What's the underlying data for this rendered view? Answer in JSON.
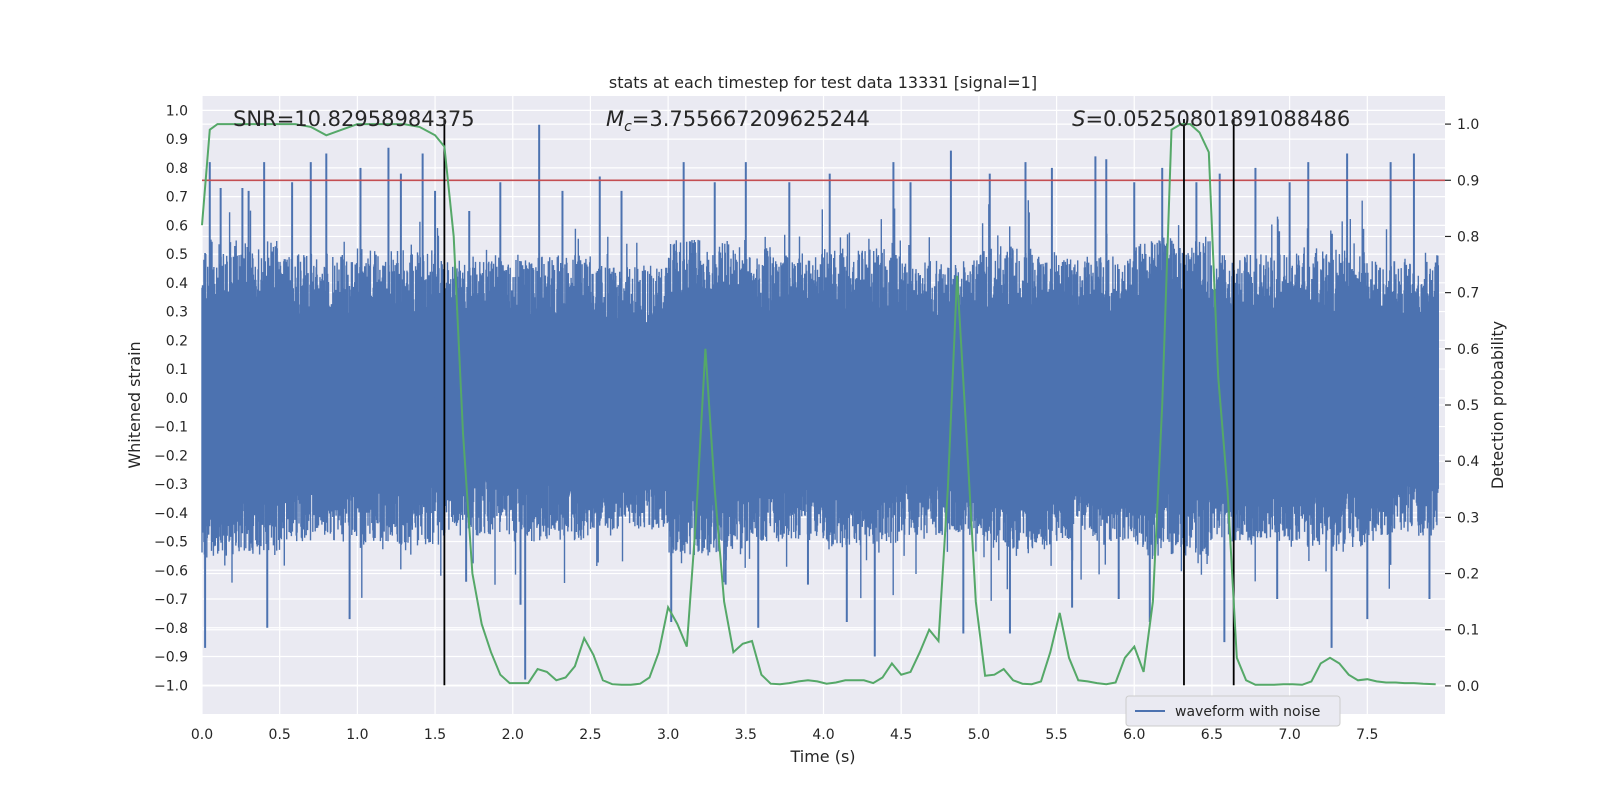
{
  "chart_data": {
    "type": "line",
    "title": "stats at each timestep for test data 13331 [signal=1]",
    "xlabel": "Time (s)",
    "ylabel": "Whitened strain",
    "ylabel_right": "Detection probability",
    "xlim": [
      0.0,
      8.0
    ],
    "ylim": [
      -1.1,
      1.05
    ],
    "ylim_right": [
      -0.05,
      1.05
    ],
    "x_ticks": [
      0.0,
      0.5,
      1.0,
      1.5,
      2.0,
      2.5,
      3.0,
      3.5,
      4.0,
      4.5,
      5.0,
      5.5,
      6.0,
      6.5,
      7.0,
      7.5
    ],
    "x_tick_labels": [
      "0.0",
      "0.5",
      "1.0",
      "1.5",
      "2.0",
      "2.5",
      "3.0",
      "3.5",
      "4.0",
      "4.5",
      "5.0",
      "5.5",
      "6.0",
      "6.5",
      "7.0",
      "7.5"
    ],
    "y_ticks": [
      1.0,
      0.9,
      0.8,
      0.7,
      0.6,
      0.5,
      0.4,
      0.3,
      0.2,
      0.1,
      0.0,
      -0.1,
      -0.2,
      -0.3,
      -0.4,
      -0.5,
      -0.6,
      -0.7,
      -0.8,
      -0.9,
      -1.0
    ],
    "y_tick_labels": [
      "1.0",
      "0.9",
      "0.8",
      "0.7",
      "0.6",
      "0.5",
      "0.4",
      "0.3",
      "0.2",
      "0.1",
      "0.0",
      "-0.1",
      "-0.2",
      "-0.3",
      "-0.4",
      "-0.5",
      "-0.6",
      "-0.7",
      "-0.8",
      "-0.9",
      "-1.0"
    ],
    "y_right_ticks": [
      1.0,
      0.9,
      0.8,
      0.7,
      0.6,
      0.5,
      0.4,
      0.3,
      0.2,
      0.1,
      0.0
    ],
    "y_right_tick_labels": [
      "1.0",
      "0.9",
      "0.8",
      "0.7",
      "0.6",
      "0.5",
      "0.4",
      "0.3",
      "0.2",
      "0.1",
      "0.0"
    ],
    "grid": true,
    "legend_position": "bottom-right",
    "annotations": [
      {
        "text": "SNR=10.82958984375",
        "x": 0.2,
        "y": 0.97
      },
      {
        "text_italic": "M",
        "text_sub": "c",
        "text_rest": "=3.755667209625244",
        "x": 2.6,
        "y": 0.97
      },
      {
        "text_italic": "S",
        "text_rest": "=0.05250801891088486",
        "x": 5.6,
        "y": 0.97
      }
    ],
    "threshold_line": {
      "y_right": 0.9,
      "color": "#c44e52"
    },
    "event_lines": [
      1.56,
      6.32,
      6.64
    ],
    "waveform": {
      "name": "waveform with noise",
      "color": "#4c72b0",
      "envelope_high": [
        0.55,
        0.5,
        0.52,
        0.48,
        0.5,
        0.46,
        0.55,
        0.5,
        0.52,
        0.48,
        0.53,
        0.5,
        0.55,
        0.5,
        0.52,
        0.48
      ],
      "spikes": [
        {
          "x": 0.02,
          "y": -0.87
        },
        {
          "x": 0.05,
          "y": 0.82
        },
        {
          "x": 0.12,
          "y": 0.73
        },
        {
          "x": 0.26,
          "y": 0.73
        },
        {
          "x": 0.3,
          "y": 0.72
        },
        {
          "x": 0.4,
          "y": 0.82
        },
        {
          "x": 0.42,
          "y": -0.8
        },
        {
          "x": 0.58,
          "y": 0.75
        },
        {
          "x": 0.7,
          "y": 0.82
        },
        {
          "x": 0.8,
          "y": 0.85
        },
        {
          "x": 0.95,
          "y": -0.77
        },
        {
          "x": 1.02,
          "y": 0.8
        },
        {
          "x": 1.2,
          "y": 0.87
        },
        {
          "x": 1.28,
          "y": 0.78
        },
        {
          "x": 1.42,
          "y": 0.85
        },
        {
          "x": 1.5,
          "y": 0.72
        },
        {
          "x": 1.7,
          "y": -0.64
        },
        {
          "x": 1.72,
          "y": 0.65
        },
        {
          "x": 1.92,
          "y": 0.75
        },
        {
          "x": 2.05,
          "y": -0.72
        },
        {
          "x": 2.08,
          "y": -0.98
        },
        {
          "x": 2.17,
          "y": 0.95
        },
        {
          "x": 2.32,
          "y": 0.72
        },
        {
          "x": 2.56,
          "y": 0.77
        },
        {
          "x": 2.7,
          "y": 0.72
        },
        {
          "x": 3.02,
          "y": -0.78
        },
        {
          "x": 3.1,
          "y": 0.82
        },
        {
          "x": 3.3,
          "y": 0.75
        },
        {
          "x": 3.37,
          "y": -0.65
        },
        {
          "x": 3.5,
          "y": 0.82
        },
        {
          "x": 3.58,
          "y": -0.8
        },
        {
          "x": 3.78,
          "y": 0.75
        },
        {
          "x": 3.9,
          "y": -0.65
        },
        {
          "x": 4.04,
          "y": 0.78
        },
        {
          "x": 4.15,
          "y": -0.78
        },
        {
          "x": 4.33,
          "y": -0.9
        },
        {
          "x": 4.45,
          "y": 0.82
        },
        {
          "x": 4.56,
          "y": 0.75
        },
        {
          "x": 4.82,
          "y": 0.86
        },
        {
          "x": 4.9,
          "y": -0.82
        },
        {
          "x": 5.07,
          "y": 0.78
        },
        {
          "x": 5.2,
          "y": -0.82
        },
        {
          "x": 5.3,
          "y": 0.82
        },
        {
          "x": 5.47,
          "y": 0.8
        },
        {
          "x": 5.6,
          "y": -0.73
        },
        {
          "x": 5.75,
          "y": 0.84
        },
        {
          "x": 5.82,
          "y": 0.83
        },
        {
          "x": 5.9,
          "y": -0.7
        },
        {
          "x": 6.0,
          "y": 0.75
        },
        {
          "x": 6.1,
          "y": -0.78
        },
        {
          "x": 6.18,
          "y": 0.8
        },
        {
          "x": 6.4,
          "y": 0.75
        },
        {
          "x": 6.55,
          "y": 0.78
        },
        {
          "x": 6.58,
          "y": -0.85
        },
        {
          "x": 6.78,
          "y": 0.8
        },
        {
          "x": 6.92,
          "y": -0.7
        },
        {
          "x": 7.0,
          "y": 0.75
        },
        {
          "x": 7.12,
          "y": 0.82
        },
        {
          "x": 7.27,
          "y": -0.87
        },
        {
          "x": 7.37,
          "y": 0.85
        },
        {
          "x": 7.5,
          "y": -0.77
        },
        {
          "x": 7.65,
          "y": 0.82
        },
        {
          "x": 7.8,
          "y": 0.85
        },
        {
          "x": 7.9,
          "y": -0.7
        }
      ]
    },
    "detection_probability": {
      "color": "#55a868",
      "x": [
        0.0,
        0.05,
        0.1,
        0.15,
        0.2,
        0.3,
        0.4,
        0.5,
        0.6,
        0.7,
        0.8,
        0.9,
        1.0,
        1.1,
        1.2,
        1.3,
        1.4,
        1.5,
        1.56,
        1.62,
        1.68,
        1.74,
        1.8,
        1.86,
        1.92,
        1.98,
        2.04,
        2.1,
        2.16,
        2.22,
        2.28,
        2.34,
        2.4,
        2.46,
        2.52,
        2.58,
        2.64,
        2.7,
        2.76,
        2.82,
        2.88,
        2.94,
        3.0,
        3.06,
        3.12,
        3.18,
        3.24,
        3.3,
        3.36,
        3.42,
        3.48,
        3.54,
        3.6,
        3.66,
        3.72,
        3.78,
        3.84,
        3.9,
        3.96,
        4.02,
        4.08,
        4.14,
        4.2,
        4.26,
        4.32,
        4.38,
        4.44,
        4.5,
        4.56,
        4.62,
        4.68,
        4.74,
        4.8,
        4.86,
        4.92,
        4.98,
        5.04,
        5.1,
        5.16,
        5.22,
        5.28,
        5.34,
        5.4,
        5.46,
        5.52,
        5.58,
        5.64,
        5.7,
        5.76,
        5.82,
        5.88,
        5.94,
        6.0,
        6.06,
        6.12,
        6.18,
        6.24,
        6.3,
        6.36,
        6.42,
        6.48,
        6.54,
        6.6,
        6.66,
        6.72,
        6.78,
        6.84,
        6.9,
        6.96,
        7.02,
        7.08,
        7.14,
        7.2,
        7.26,
        7.32,
        7.38,
        7.44,
        7.5,
        7.56,
        7.62,
        7.68,
        7.74,
        7.8,
        7.86,
        7.94
      ],
      "y": [
        0.82,
        0.99,
        1.0,
        1.0,
        1.0,
        1.0,
        1.0,
        1.0,
        1.0,
        0.995,
        0.98,
        0.99,
        1.0,
        1.0,
        1.0,
        1.0,
        0.995,
        0.98,
        0.96,
        0.8,
        0.45,
        0.2,
        0.11,
        0.06,
        0.02,
        0.005,
        0.005,
        0.005,
        0.03,
        0.025,
        0.01,
        0.015,
        0.035,
        0.085,
        0.055,
        0.01,
        0.003,
        0.002,
        0.002,
        0.004,
        0.015,
        0.06,
        0.14,
        0.11,
        0.07,
        0.3,
        0.6,
        0.35,
        0.15,
        0.06,
        0.075,
        0.08,
        0.02,
        0.004,
        0.003,
        0.005,
        0.008,
        0.01,
        0.008,
        0.004,
        0.006,
        0.01,
        0.01,
        0.01,
        0.005,
        0.015,
        0.04,
        0.02,
        0.025,
        0.06,
        0.1,
        0.08,
        0.35,
        0.73,
        0.45,
        0.15,
        0.018,
        0.02,
        0.03,
        0.01,
        0.004,
        0.003,
        0.008,
        0.06,
        0.13,
        0.05,
        0.01,
        0.008,
        0.005,
        0.003,
        0.006,
        0.05,
        0.07,
        0.025,
        0.15,
        0.5,
        0.99,
        1.0,
        1.0,
        0.985,
        0.95,
        0.55,
        0.35,
        0.05,
        0.01,
        0.002,
        0.002,
        0.002,
        0.003,
        0.003,
        0.002,
        0.008,
        0.04,
        0.05,
        0.04,
        0.02,
        0.01,
        0.012,
        0.008,
        0.006,
        0.006,
        0.005,
        0.005,
        0.004,
        0.003
      ]
    }
  }
}
